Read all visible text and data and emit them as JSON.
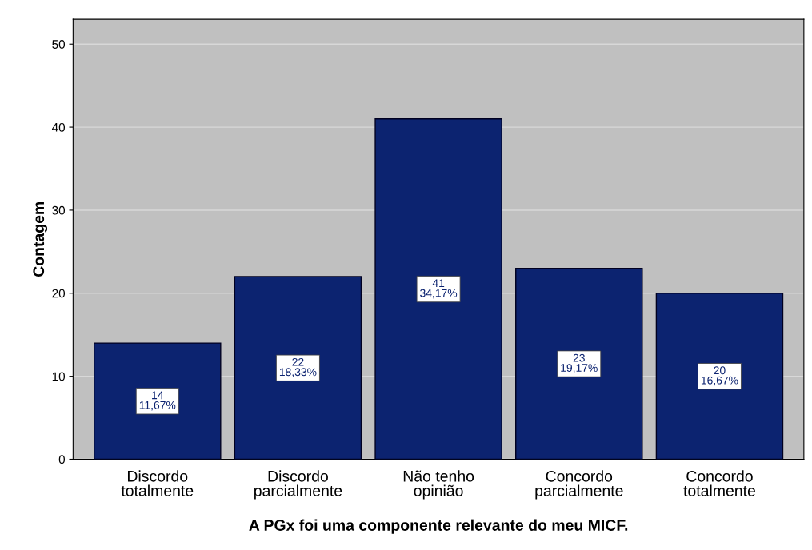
{
  "chart_data": {
    "type": "bar",
    "xlabel": "A PGx foi uma componente relevante do meu MICF.",
    "ylabel": "Contagem",
    "categories": [
      "Discordo\ntotalmente",
      "Discordo\nparcialmente",
      "Não tenho\nopinião",
      "Concordo\nparcialmente",
      "Concordo\ntotalmente"
    ],
    "values": [
      14,
      22,
      41,
      23,
      20
    ],
    "value_labels": [
      "14\n11,67%",
      "22\n18,33%",
      "41\n34,17%",
      "23\n19,17%",
      "20\n16,67%"
    ],
    "color": "#0c2370",
    "ylim": [
      0,
      53
    ],
    "yticks": [
      0,
      10,
      20,
      30,
      40,
      50
    ],
    "grid": "y"
  }
}
